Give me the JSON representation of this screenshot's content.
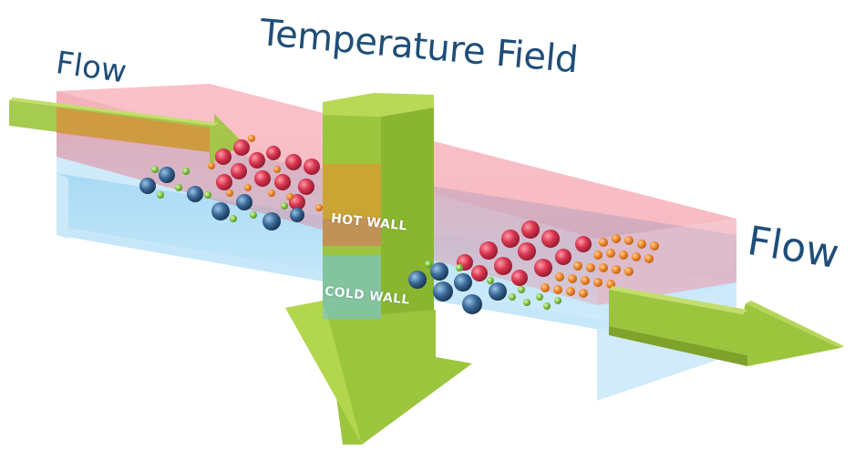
{
  "labels": {
    "title": "Temperature Field",
    "flow_in": "Flow",
    "flow_out": "Flow",
    "hot_wall": "HOT WALL",
    "cold_wall": "COLD WALL"
  },
  "colors": {
    "text_navy": "#1f4e79",
    "arrow_green": "#9bc53d",
    "hot_slab": "#e8606e",
    "cold_slab": "#8fd0f2",
    "large_particle_red": "#d2304a",
    "small_particle_orange": "#f08a2c",
    "large_particle_blue": "#2e5d8c",
    "small_particle_green": "#86c84a"
  }
}
